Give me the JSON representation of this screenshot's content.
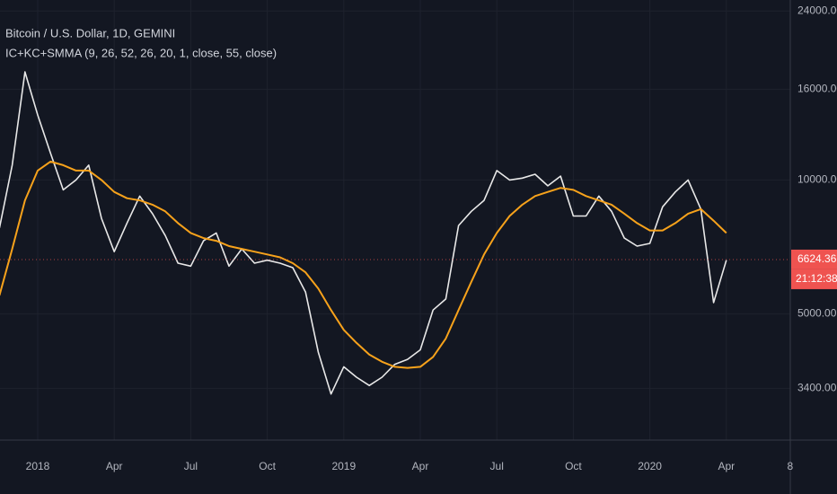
{
  "chart_data": {
    "type": "line",
    "title": "Bitcoin / U.S. Dollar, 1D, GEMINI",
    "subtitle": "IC+KC+SMMA (9, 26, 52, 26, 20, 1, close, 55, close)",
    "categories": [
      null,
      null,
      null,
      "2018",
      null,
      null,
      null,
      null,
      null,
      "Apr",
      null,
      null,
      null,
      null,
      null,
      "Jul",
      null,
      null,
      null,
      null,
      null,
      "Oct",
      null,
      null,
      null,
      null,
      null,
      "2019",
      null,
      null,
      null,
      null,
      null,
      "Apr",
      null,
      null,
      null,
      null,
      null,
      "Jul",
      null,
      null,
      null,
      null,
      null,
      "Oct",
      null,
      null,
      null,
      null,
      null,
      "2020",
      null,
      null,
      null,
      null,
      null,
      "Apr",
      null,
      null,
      null,
      null,
      "8",
      null
    ],
    "series": [
      {
        "color": "#e8e8e8",
        "values": [
          7800,
          10800,
          17500,
          14000,
          11500,
          9500,
          10000,
          10800,
          8200,
          6900,
          8000,
          9200,
          8400,
          7500,
          6500,
          6400,
          7300,
          7600,
          6400,
          7000,
          6500,
          6600,
          6500,
          6350,
          5600,
          4100,
          3300,
          3800,
          3600,
          3450,
          3600,
          3850,
          3950,
          4150,
          5100,
          5400,
          7900,
          8500,
          9000,
          10500,
          10000,
          10100,
          10300,
          9700,
          10200,
          8300,
          8300,
          9200,
          8500,
          7400,
          7100,
          7200,
          8700,
          9400,
          10000,
          8600,
          5300,
          6600,
          null,
          null,
          null,
          null,
          null,
          null
        ]
      },
      {
        "color": "#f7a21b",
        "values": [
          5500,
          7000,
          9000,
          10500,
          11000,
          10800,
          10500,
          10500,
          10000,
          9400,
          9100,
          9000,
          8800,
          8500,
          8000,
          7600,
          7400,
          7300,
          7100,
          7000,
          6900,
          6800,
          6700,
          6500,
          6200,
          5700,
          5100,
          4600,
          4300,
          4050,
          3900,
          3800,
          3780,
          3800,
          4000,
          4400,
          5100,
          5900,
          6800,
          7600,
          8300,
          8800,
          9200,
          9400,
          9600,
          9500,
          9200,
          9000,
          8800,
          8400,
          8000,
          7700,
          7700,
          8000,
          8400,
          8600,
          8100,
          7600,
          null,
          null,
          null,
          null,
          null,
          null
        ]
      }
    ],
    "log_scale": true,
    "ylim": [
      2600,
      25400
    ],
    "yticks": [
      {
        "value": 3400,
        "label": "3400.00"
      },
      {
        "value": 5000,
        "label": "5000.00"
      },
      {
        "value": 10000,
        "label": "10000.00"
      },
      {
        "value": 16000,
        "label": "16000.00"
      },
      {
        "value": 24000,
        "label": "24000.00"
      }
    ],
    "grid": true,
    "last_price": {
      "value": 6624.36,
      "label": "6624.36",
      "color": "#ef5350"
    },
    "countdown": "21:12:38"
  }
}
